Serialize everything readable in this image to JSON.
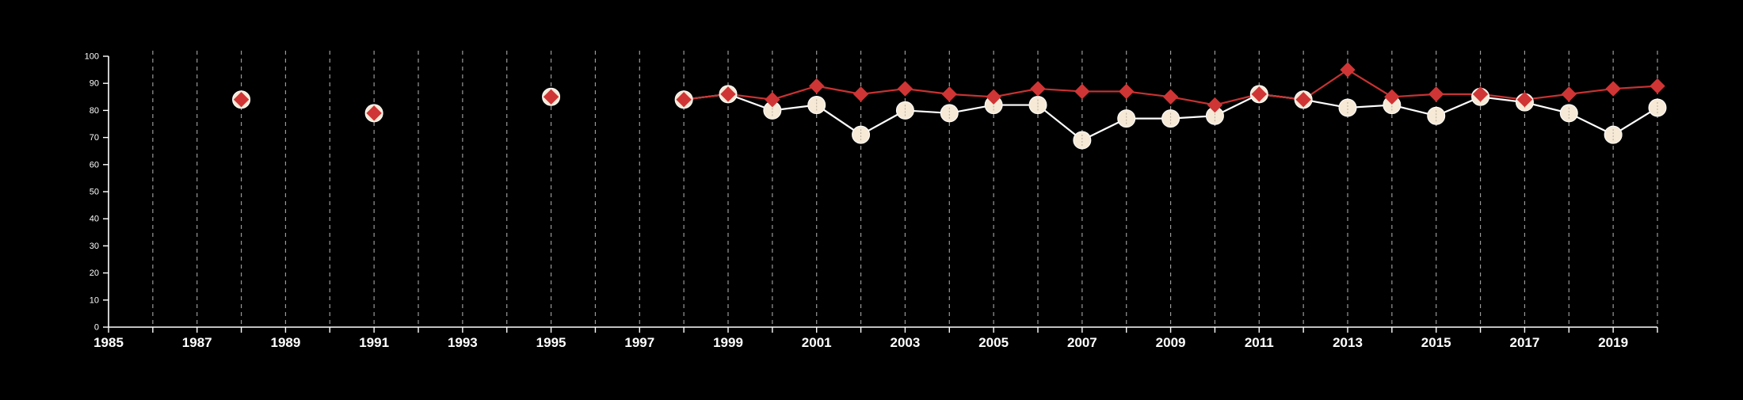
{
  "chart_data": {
    "type": "line",
    "title": "",
    "xlabel": "",
    "ylabel": "",
    "xlim": [
      1985,
      2020
    ],
    "ylim": [
      0,
      100
    ],
    "x_ticks_major": [
      1985,
      1987,
      1989,
      1991,
      1993,
      1995,
      1997,
      1999,
      2001,
      2003,
      2005,
      2007,
      2009,
      2011,
      2013,
      2015,
      2017,
      2019
    ],
    "y_ticks": [
      0,
      10,
      20,
      30,
      40,
      50,
      60,
      70,
      80,
      90,
      100
    ],
    "grid": "vertical dashed lines at every year",
    "legend": "none",
    "colors": {
      "background": "#000000",
      "axis": "#ffffff",
      "grid": "#9a9a9a",
      "series_white_line": "#ffffff",
      "series_white_marker": "#f6e9d6",
      "series_red_line": "#c83232",
      "series_red_marker": "#d03535"
    },
    "series": [
      {
        "marker": "circle",
        "color": "#f6e9d6",
        "points": [
          [
            1988,
            84
          ],
          [
            1991,
            79
          ],
          [
            1995,
            85
          ],
          [
            1998,
            84
          ],
          [
            1999,
            86
          ],
          [
            2000,
            80
          ],
          [
            2001,
            82
          ],
          [
            2002,
            71
          ],
          [
            2003,
            80
          ],
          [
            2004,
            79
          ],
          [
            2005,
            82
          ],
          [
            2006,
            82
          ],
          [
            2007,
            69
          ],
          [
            2008,
            77
          ],
          [
            2009,
            77
          ],
          [
            2010,
            78
          ],
          [
            2011,
            86
          ],
          [
            2012,
            84
          ],
          [
            2013,
            81
          ],
          [
            2014,
            82
          ],
          [
            2015,
            78
          ],
          [
            2016,
            85
          ],
          [
            2017,
            83
          ],
          [
            2018,
            79
          ],
          [
            2019,
            71
          ],
          [
            2020,
            81
          ]
        ]
      },
      {
        "marker": "diamond",
        "color": "#d03535",
        "points": [
          [
            1988,
            84
          ],
          [
            1991,
            79
          ],
          [
            1995,
            85
          ],
          [
            1998,
            84
          ],
          [
            1999,
            86
          ],
          [
            2000,
            84
          ],
          [
            2001,
            89
          ],
          [
            2002,
            86
          ],
          [
            2003,
            88
          ],
          [
            2004,
            86
          ],
          [
            2005,
            85
          ],
          [
            2006,
            88
          ],
          [
            2007,
            87
          ],
          [
            2008,
            87
          ],
          [
            2009,
            85
          ],
          [
            2010,
            82
          ],
          [
            2011,
            86
          ],
          [
            2012,
            84
          ],
          [
            2013,
            95
          ],
          [
            2014,
            85
          ],
          [
            2015,
            86
          ],
          [
            2016,
            86
          ],
          [
            2017,
            84
          ],
          [
            2018,
            86
          ],
          [
            2019,
            88
          ],
          [
            2020,
            89
          ]
        ]
      }
    ]
  }
}
